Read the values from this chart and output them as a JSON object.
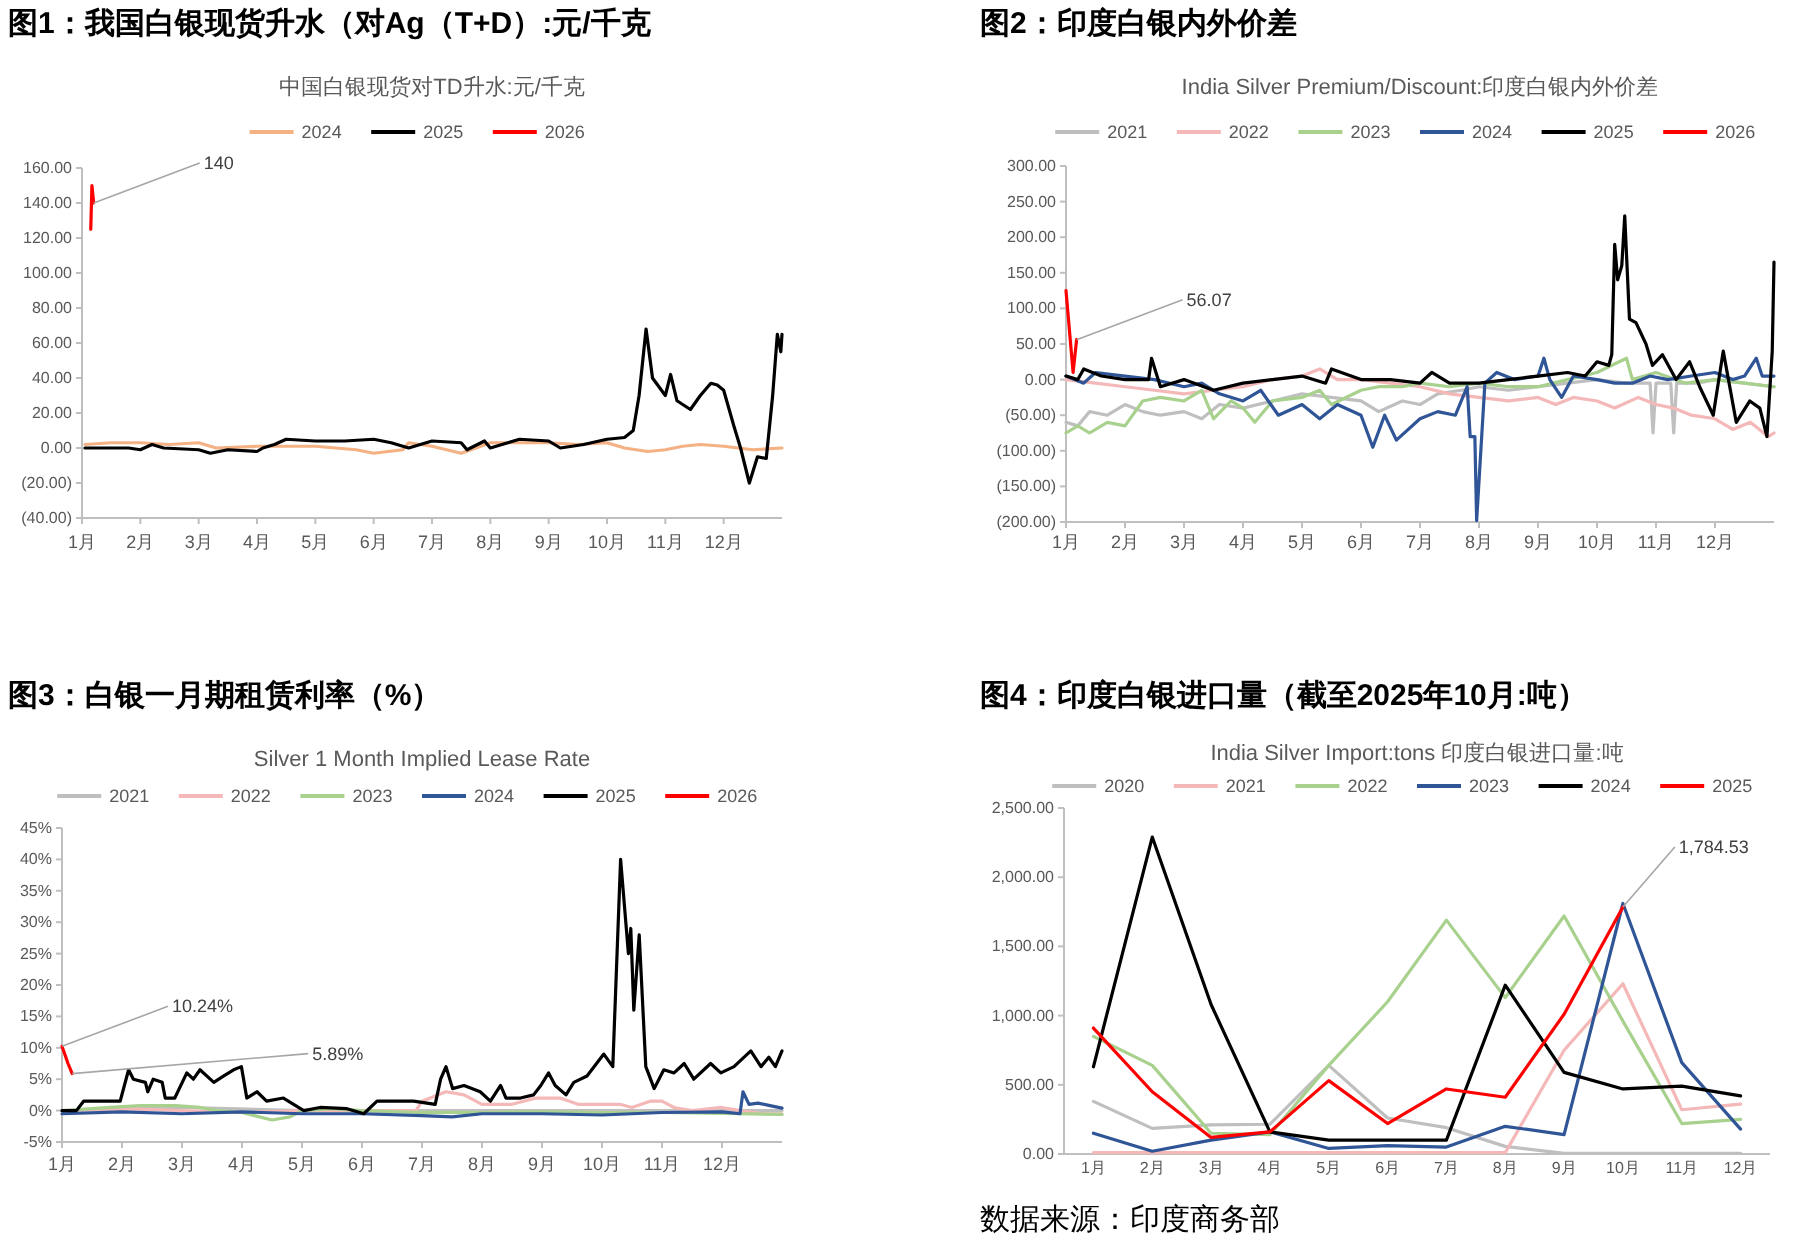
{
  "chart_data": [
    {
      "type": "line",
      "title": "图1：我国白银现货升水（对Ag（T+D）:元/千克",
      "subtitle": "中国白银现货对TD升水:元/千克",
      "legend": "top",
      "xlim": [
        1,
        13
      ],
      "xticks": [
        {
          "value": 1,
          "label": "1月"
        },
        {
          "value": 2,
          "label": "2月"
        },
        {
          "value": 3,
          "label": "3月"
        },
        {
          "value": 4,
          "label": "4月"
        },
        {
          "value": 5,
          "label": "5月"
        },
        {
          "value": 6,
          "label": "6月"
        },
        {
          "value": 7,
          "label": "7月"
        },
        {
          "value": 8,
          "label": "8月"
        },
        {
          "value": 9,
          "label": "9月"
        },
        {
          "value": 10,
          "label": "10月"
        },
        {
          "value": 11,
          "label": "11月"
        },
        {
          "value": 12,
          "label": "12月"
        }
      ],
      "ylim": [
        -40,
        160
      ],
      "yticks": [
        {
          "value": 160,
          "label": "160.00"
        },
        {
          "value": 140,
          "label": "140.00"
        },
        {
          "value": 120,
          "label": "120.00"
        },
        {
          "value": 100,
          "label": "100.00"
        },
        {
          "value": 80,
          "label": "80.00"
        },
        {
          "value": 60,
          "label": "60.00"
        },
        {
          "value": 40,
          "label": "40.00"
        },
        {
          "value": 20,
          "label": "20.00"
        },
        {
          "value": 0,
          "label": "0.00"
        },
        {
          "value": -20,
          "label": "(20.00)"
        },
        {
          "value": -40,
          "label": "(40.00)"
        }
      ],
      "series": [
        {
          "name": "2024",
          "color": "#f4b183",
          "x": [
            1.05,
            1.5,
            2.0,
            2.5,
            3.0,
            3.3,
            4.0,
            5.0,
            5.7,
            6.0,
            6.5,
            6.6,
            7.0,
            7.5,
            8.0,
            9.0,
            9.5,
            10.0,
            10.3,
            10.7,
            11.0,
            11.3,
            11.6,
            12.0,
            12.5,
            13.0
          ],
          "values": [
            2,
            3,
            3,
            2,
            3,
            0,
            1,
            1,
            -1,
            -3,
            -1,
            3,
            1,
            -3,
            3,
            3,
            2,
            3,
            0,
            -2,
            -1,
            1,
            2,
            1,
            -1,
            0
          ]
        },
        {
          "name": "2025",
          "color": "#000000",
          "x": [
            1.05,
            1.8,
            2.0,
            2.2,
            2.4,
            3.0,
            3.2,
            3.5,
            4.0,
            4.1,
            4.3,
            4.5,
            5.0,
            5.5,
            6.0,
            6.3,
            6.6,
            7.0,
            7.5,
            7.6,
            7.9,
            8.0,
            8.3,
            8.5,
            9.0,
            9.2,
            9.6,
            10.0,
            10.3,
            10.45,
            10.55,
            10.67,
            10.78,
            11.0,
            11.09,
            11.2,
            11.43,
            11.6,
            11.78,
            11.89,
            12.0,
            12.18,
            12.29,
            12.44,
            12.58,
            12.73,
            12.84,
            12.92,
            12.98,
            13.0
          ],
          "values": [
            0,
            0,
            -1,
            2,
            0,
            -1,
            -3,
            -1,
            -2,
            0,
            2,
            5,
            4,
            4,
            5,
            3,
            0,
            4,
            3,
            -1,
            4,
            0,
            3,
            5,
            4,
            0,
            2,
            5,
            6,
            10,
            30,
            68,
            40,
            30,
            42,
            27,
            22,
            30,
            37,
            36,
            33,
            12,
            0,
            -20,
            -5,
            -6,
            30,
            65,
            55,
            65
          ]
        },
        {
          "name": "2026",
          "color": "#ff0000",
          "x": [
            1.15,
            1.17,
            1.2
          ],
          "values": [
            125,
            150,
            140
          ]
        }
      ],
      "annotations": [
        {
          "text": "140",
          "x": 1.2,
          "y": 140
        }
      ]
    },
    {
      "type": "line",
      "title": "图2：印度白银内外价差",
      "subtitle": "India Silver Premium/Discount:印度白银内外价差",
      "legend": "top",
      "xlim": [
        1,
        13
      ],
      "xticks": [
        {
          "value": 1,
          "label": "1月"
        },
        {
          "value": 2,
          "label": "2月"
        },
        {
          "value": 3,
          "label": "3月"
        },
        {
          "value": 4,
          "label": "4月"
        },
        {
          "value": 5,
          "label": "5月"
        },
        {
          "value": 6,
          "label": "6月"
        },
        {
          "value": 7,
          "label": "7月"
        },
        {
          "value": 8,
          "label": "8月"
        },
        {
          "value": 9,
          "label": "9月"
        },
        {
          "value": 10,
          "label": "10月"
        },
        {
          "value": 11,
          "label": "11月"
        },
        {
          "value": 12,
          "label": "12月"
        }
      ],
      "ylim": [
        -200,
        300
      ],
      "yticks": [
        {
          "value": 300,
          "label": "300.00"
        },
        {
          "value": 250,
          "label": "250.00"
        },
        {
          "value": 200,
          "label": "200.00"
        },
        {
          "value": 150,
          "label": "150.00"
        },
        {
          "value": 100,
          "label": "100.00"
        },
        {
          "value": 50,
          "label": "50.00"
        },
        {
          "value": 0,
          "label": "0.00"
        },
        {
          "value": -50,
          "label": "(50.00)"
        },
        {
          "value": -100,
          "label": "(100.00)"
        },
        {
          "value": -150,
          "label": "(150.00)"
        },
        {
          "value": -200,
          "label": "(200.00)"
        }
      ],
      "series": [
        {
          "name": "2021",
          "color": "#bfbfbf",
          "x": [
            1.0,
            1.2,
            1.4,
            1.7,
            2.0,
            2.3,
            2.6,
            3.0,
            3.3,
            3.6,
            4.0,
            4.5,
            5.0,
            5.5,
            6.0,
            6.3,
            6.7,
            7.0,
            7.3,
            7.7,
            8.0,
            8.5,
            9.0,
            9.5,
            10.0,
            10.5,
            10.9,
            10.95,
            11.0,
            11.25,
            11.3,
            11.35,
            11.7,
            12.0,
            12.5,
            13.0
          ],
          "values": [
            -60,
            -65,
            -45,
            -50,
            -35,
            -45,
            -50,
            -45,
            -55,
            -35,
            -40,
            -30,
            -20,
            -25,
            -30,
            -45,
            -30,
            -35,
            -20,
            -15,
            -10,
            -15,
            -10,
            -5,
            0,
            -5,
            -5,
            -75,
            -5,
            -5,
            -75,
            -5,
            -5,
            0,
            -5,
            -10
          ]
        },
        {
          "name": "2022",
          "color": "#f4b8b8",
          "x": [
            1.0,
            1.5,
            2.0,
            2.5,
            3.0,
            3.5,
            4.0,
            4.5,
            5.0,
            5.3,
            5.6,
            6.0,
            6.5,
            7.0,
            7.5,
            8.0,
            8.5,
            9.0,
            9.3,
            9.6,
            10.0,
            10.3,
            10.7,
            11.0,
            11.3,
            11.6,
            12.0,
            12.3,
            12.6,
            12.9,
            13.0
          ],
          "values": [
            0,
            -5,
            -10,
            -15,
            -20,
            -15,
            -10,
            0,
            5,
            15,
            0,
            0,
            -5,
            -10,
            -20,
            -25,
            -30,
            -25,
            -35,
            -25,
            -30,
            -40,
            -25,
            -35,
            -40,
            -50,
            -55,
            -70,
            -60,
            -80,
            -75
          ]
        },
        {
          "name": "2023",
          "color": "#a9d18e",
          "x": [
            1.0,
            1.2,
            1.4,
            1.7,
            2.0,
            2.3,
            2.6,
            3.0,
            3.3,
            3.5,
            3.8,
            4.0,
            4.2,
            4.5,
            5.0,
            5.3,
            5.5,
            6.0,
            6.3,
            6.7,
            7.0,
            7.5,
            8.0,
            8.5,
            9.0,
            9.5,
            10.0,
            10.5,
            10.6,
            11.0,
            11.5,
            12.0,
            12.5,
            13.0
          ],
          "values": [
            -75,
            -65,
            -75,
            -60,
            -65,
            -30,
            -25,
            -30,
            -15,
            -55,
            -30,
            -40,
            -60,
            -30,
            -25,
            -15,
            -35,
            -15,
            -10,
            -10,
            -5,
            -10,
            -5,
            -10,
            -10,
            0,
            10,
            30,
            0,
            10,
            -5,
            0,
            -5,
            -10
          ]
        },
        {
          "name": "2024",
          "color": "#2f5597",
          "x": [
            1.0,
            1.3,
            1.5,
            2.0,
            2.5,
            3.0,
            3.3,
            3.6,
            4.0,
            4.3,
            4.6,
            5.0,
            5.3,
            5.6,
            6.0,
            6.2,
            6.4,
            6.6,
            7.0,
            7.3,
            7.6,
            7.8,
            7.85,
            7.93,
            7.96,
            8.1,
            8.3,
            8.6,
            9.0,
            9.1,
            9.2,
            9.4,
            9.6,
            10.0,
            10.3,
            10.6,
            10.9,
            11.2,
            11.6,
            12.0,
            12.3,
            12.5,
            12.7,
            12.8,
            13.0
          ],
          "values": [
            5,
            -5,
            10,
            5,
            0,
            -10,
            -5,
            -20,
            -30,
            -15,
            -50,
            -35,
            -55,
            -35,
            -50,
            -95,
            -50,
            -85,
            -55,
            -45,
            -50,
            -10,
            -80,
            -80,
            -198,
            -5,
            10,
            0,
            5,
            30,
            0,
            -25,
            5,
            0,
            -5,
            -5,
            5,
            0,
            5,
            10,
            0,
            5,
            30,
            5,
            5
          ]
        },
        {
          "name": "2025",
          "color": "#000000",
          "x": [
            1.0,
            1.2,
            1.3,
            1.6,
            2.0,
            2.4,
            2.45,
            2.6,
            3.0,
            3.5,
            4.0,
            4.5,
            5.0,
            5.4,
            5.5,
            6.0,
            6.5,
            7.0,
            7.2,
            7.5,
            8.0,
            8.5,
            9.0,
            9.5,
            9.8,
            10.0,
            10.2,
            10.25,
            10.3,
            10.35,
            10.42,
            10.47,
            10.55,
            10.66,
            10.83,
            10.94,
            11.11,
            11.34,
            11.57,
            11.74,
            11.97,
            12.14,
            12.36,
            12.59,
            12.76,
            12.88,
            12.97,
            13.0
          ],
          "values": [
            5,
            0,
            15,
            5,
            0,
            0,
            30,
            -10,
            0,
            -15,
            -5,
            0,
            5,
            -5,
            15,
            0,
            0,
            -5,
            10,
            -5,
            -5,
            0,
            5,
            10,
            5,
            25,
            20,
            35,
            190,
            140,
            160,
            230,
            85,
            80,
            50,
            20,
            35,
            0,
            25,
            -10,
            -50,
            40,
            -60,
            -30,
            -40,
            -80,
            40,
            165
          ]
        },
        {
          "name": "2026",
          "color": "#ff0000",
          "x": [
            1.0,
            1.12,
            1.18
          ],
          "values": [
            125,
            10,
            56.07
          ]
        }
      ],
      "annotations": [
        {
          "text": "56.07",
          "x": 1.18,
          "y": 56.07
        }
      ]
    },
    {
      "type": "line",
      "title": "图3：白银一月期租赁利率（%）",
      "subtitle": "Silver 1 Month Implied Lease Rate",
      "legend": "top",
      "xlim": [
        1,
        13
      ],
      "xticks": [
        {
          "value": 1,
          "label": "1月"
        },
        {
          "value": 2,
          "label": "2月"
        },
        {
          "value": 3,
          "label": "3月"
        },
        {
          "value": 4,
          "label": "4月"
        },
        {
          "value": 5,
          "label": "5月"
        },
        {
          "value": 6,
          "label": "6月"
        },
        {
          "value": 7,
          "label": "7月"
        },
        {
          "value": 8,
          "label": "8月"
        },
        {
          "value": 9,
          "label": "9月"
        },
        {
          "value": 10,
          "label": "10月"
        },
        {
          "value": 11,
          "label": "11月"
        },
        {
          "value": 12,
          "label": "12月"
        }
      ],
      "ylim": [
        -5,
        45
      ],
      "yticks": [
        {
          "value": 45,
          "label": "45%"
        },
        {
          "value": 40,
          "label": "40%"
        },
        {
          "value": 35,
          "label": "35%"
        },
        {
          "value": 30,
          "label": "30%"
        },
        {
          "value": 25,
          "label": "25%"
        },
        {
          "value": 20,
          "label": "20%"
        },
        {
          "value": 15,
          "label": "15%"
        },
        {
          "value": 10,
          "label": "10%"
        },
        {
          "value": 5,
          "label": "5%"
        },
        {
          "value": 0,
          "label": "0%"
        },
        {
          "value": -5,
          "label": "-5%"
        }
      ],
      "series": [
        {
          "name": "2021",
          "color": "#bfbfbf",
          "x": [
            1,
            3,
            5,
            7,
            9,
            11,
            13
          ],
          "values": [
            0,
            0.5,
            0,
            0,
            0,
            0,
            0
          ]
        },
        {
          "name": "2022",
          "color": "#f4b8b8",
          "x": [
            1,
            2,
            3,
            4,
            5,
            6,
            6.9,
            7.0,
            7.4,
            7.7,
            8.0,
            8.5,
            8.9,
            9.3,
            9.6,
            10,
            10.3,
            10.5,
            10.8,
            11.0,
            11.2,
            11.5,
            12.0,
            12.3,
            12.7,
            13
          ],
          "values": [
            0,
            0.3,
            0,
            -0.3,
            0,
            0,
            0,
            1.5,
            3,
            2.5,
            1,
            1,
            2,
            2,
            1,
            1,
            1,
            0.5,
            1.5,
            1.5,
            0.5,
            0,
            0.5,
            0,
            -0.5,
            -0.5
          ]
        },
        {
          "name": "2023",
          "color": "#a9d18e",
          "x": [
            1,
            1.8,
            2.3,
            2.9,
            3.3,
            3.6,
            4.0,
            4.5,
            4.8,
            5.0,
            5.5,
            6,
            7,
            8,
            9,
            10,
            11,
            12.3,
            13
          ],
          "values": [
            0,
            0.5,
            0.8,
            0.8,
            0.5,
            0,
            -0.3,
            -1.5,
            -1.0,
            0,
            0.3,
            0,
            -0.3,
            -0.3,
            -0.2,
            -0.3,
            -0.3,
            -0.5,
            -0.6
          ]
        },
        {
          "name": "2024",
          "color": "#2f5597",
          "x": [
            1,
            2,
            3,
            4,
            5,
            6,
            7,
            7.5,
            8,
            9,
            10,
            11,
            12,
            12.3,
            12.35,
            12.45,
            12.6,
            12.8,
            13
          ],
          "values": [
            -0.5,
            -0.2,
            -0.5,
            -0.2,
            -0.5,
            -0.5,
            -0.8,
            -1,
            -0.5,
            -0.5,
            -0.7,
            -0.3,
            -0.2,
            -0.5,
            3,
            1,
            1.2,
            0.8,
            0.4
          ]
        },
        {
          "name": "2025",
          "color": "#000000",
          "x": [
            1.0,
            1.24,
            1.36,
            1.8,
            1.97,
            2.11,
            2.19,
            2.39,
            2.43,
            2.52,
            2.67,
            2.72,
            2.88,
            3.08,
            3.19,
            3.3,
            3.53,
            3.69,
            3.86,
            3.99,
            4.08,
            4.25,
            4.41,
            4.69,
            4.86,
            5.03,
            5.3,
            5.75,
            6.03,
            6.25,
            6.86,
            7.22,
            7.31,
            7.4,
            7.51,
            7.7,
            7.97,
            8.14,
            8.31,
            8.4,
            8.64,
            8.86,
            8.98,
            9.11,
            9.22,
            9.4,
            9.53,
            9.75,
            10.03,
            10.18,
            10.31,
            10.44,
            10.48,
            10.53,
            10.62,
            10.73,
            10.87,
            11.03,
            11.2,
            11.37,
            11.53,
            11.81,
            11.98,
            12.2,
            12.48,
            12.65,
            12.78,
            12.89,
            13.0
          ],
          "values": [
            0,
            0,
            1.5,
            1.5,
            1.5,
            6.5,
            5,
            4.5,
            3,
            5,
            4.5,
            2,
            2,
            6,
            5,
            6.5,
            4.5,
            5.5,
            6.5,
            7,
            2,
            3,
            1.5,
            2,
            1,
            0,
            0.5,
            0.3,
            -0.5,
            1.5,
            1.5,
            1,
            5,
            7,
            3.5,
            4,
            3,
            1.5,
            4,
            2,
            2,
            2.5,
            4,
            6,
            4,
            2.5,
            4.5,
            5.5,
            9,
            7,
            40,
            25,
            29,
            16,
            28,
            7,
            3.5,
            6.5,
            6,
            7.5,
            5,
            7.5,
            6,
            7,
            9.5,
            7,
            8.5,
            7,
            9.5
          ]
        },
        {
          "name": "2026",
          "color": "#ff0000",
          "x": [
            1.0,
            1.1,
            1.17
          ],
          "values": [
            10.24,
            7.5,
            5.89
          ]
        }
      ],
      "annotations": [
        {
          "text": "10.24%",
          "x": 1.0,
          "y": 10.24
        },
        {
          "text": "5.89%",
          "x": 1.17,
          "y": 5.89
        }
      ]
    },
    {
      "type": "line",
      "title": "图4：印度白银进口量（截至2025年10月:吨）",
      "subtitle": "India Silver Import:tons 印度白银进口量:吨",
      "legend": "top",
      "categories": [
        "1月",
        "2月",
        "3月",
        "4月",
        "5月",
        "6月",
        "7月",
        "8月",
        "9月",
        "10月",
        "11月",
        "12月"
      ],
      "ylim": [
        0,
        2500
      ],
      "yticks": [
        {
          "value": 2500,
          "label": "2,500.00"
        },
        {
          "value": 2000,
          "label": "2,000.00"
        },
        {
          "value": 1500,
          "label": "1,500.00"
        },
        {
          "value": 1000,
          "label": "1,000.00"
        },
        {
          "value": 500,
          "label": "500.00"
        },
        {
          "value": 0,
          "label": "0.00"
        }
      ],
      "series": [
        {
          "name": "2020",
          "color": "#bfbfbf",
          "values": [
            380,
            185,
            210,
            215,
            640,
            260,
            190,
            55,
            5,
            5,
            5,
            5
          ]
        },
        {
          "name": "2021",
          "color": "#f4b8b8",
          "values": [
            10,
            10,
            10,
            10,
            10,
            10,
            10,
            10,
            750,
            1230,
            320,
            360
          ]
        },
        {
          "name": "2022",
          "color": "#a9d18e",
          "values": [
            850,
            640,
            150,
            140,
            640,
            1100,
            1690,
            1130,
            1720,
            960,
            220,
            250
          ]
        },
        {
          "name": "2023",
          "color": "#2f5597",
          "values": [
            150,
            20,
            100,
            160,
            40,
            60,
            50,
            200,
            140,
            1810,
            660,
            180
          ]
        },
        {
          "name": "2024",
          "color": "#000000",
          "values": [
            630,
            2290,
            1080,
            160,
            100,
            100,
            100,
            1220,
            590,
            470,
            490,
            420
          ]
        },
        {
          "name": "2025",
          "color": "#ff0000",
          "values": [
            910,
            450,
            120,
            160,
            530,
            220,
            470,
            410,
            1010,
            1784.53,
            null,
            null
          ]
        }
      ],
      "annotations": [
        {
          "text": "1,784.53",
          "x": "10月",
          "y": 1784.53
        },
        "数据来源：印度商务部"
      ]
    }
  ]
}
